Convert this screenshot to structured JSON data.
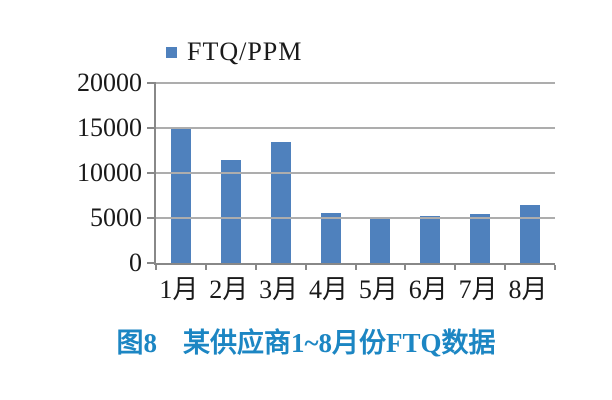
{
  "legend": {
    "label": "FTQ/PPM",
    "marker_color": "#4f81bd"
  },
  "caption": {
    "figure_number": "图8",
    "text": "某供应商1~8月份FTQ数据",
    "color": "#1c86c3"
  },
  "chart_data": {
    "type": "bar",
    "categories": [
      "1月",
      "2月",
      "3月",
      "4月",
      "5月",
      "6月",
      "7月",
      "8月"
    ],
    "values": [
      15000,
      11500,
      13500,
      5600,
      5000,
      5200,
      5500,
      6500
    ],
    "series_name": "FTQ/PPM",
    "title": "",
    "xlabel": "",
    "ylabel": "",
    "ylim": [
      0,
      20000
    ],
    "yticks": [
      0,
      5000,
      10000,
      15000,
      20000
    ],
    "bar_color": "#4f81bd",
    "gridline_color": "#adadad",
    "axis_color": "#888888",
    "grid": true,
    "legend_position": "top"
  }
}
